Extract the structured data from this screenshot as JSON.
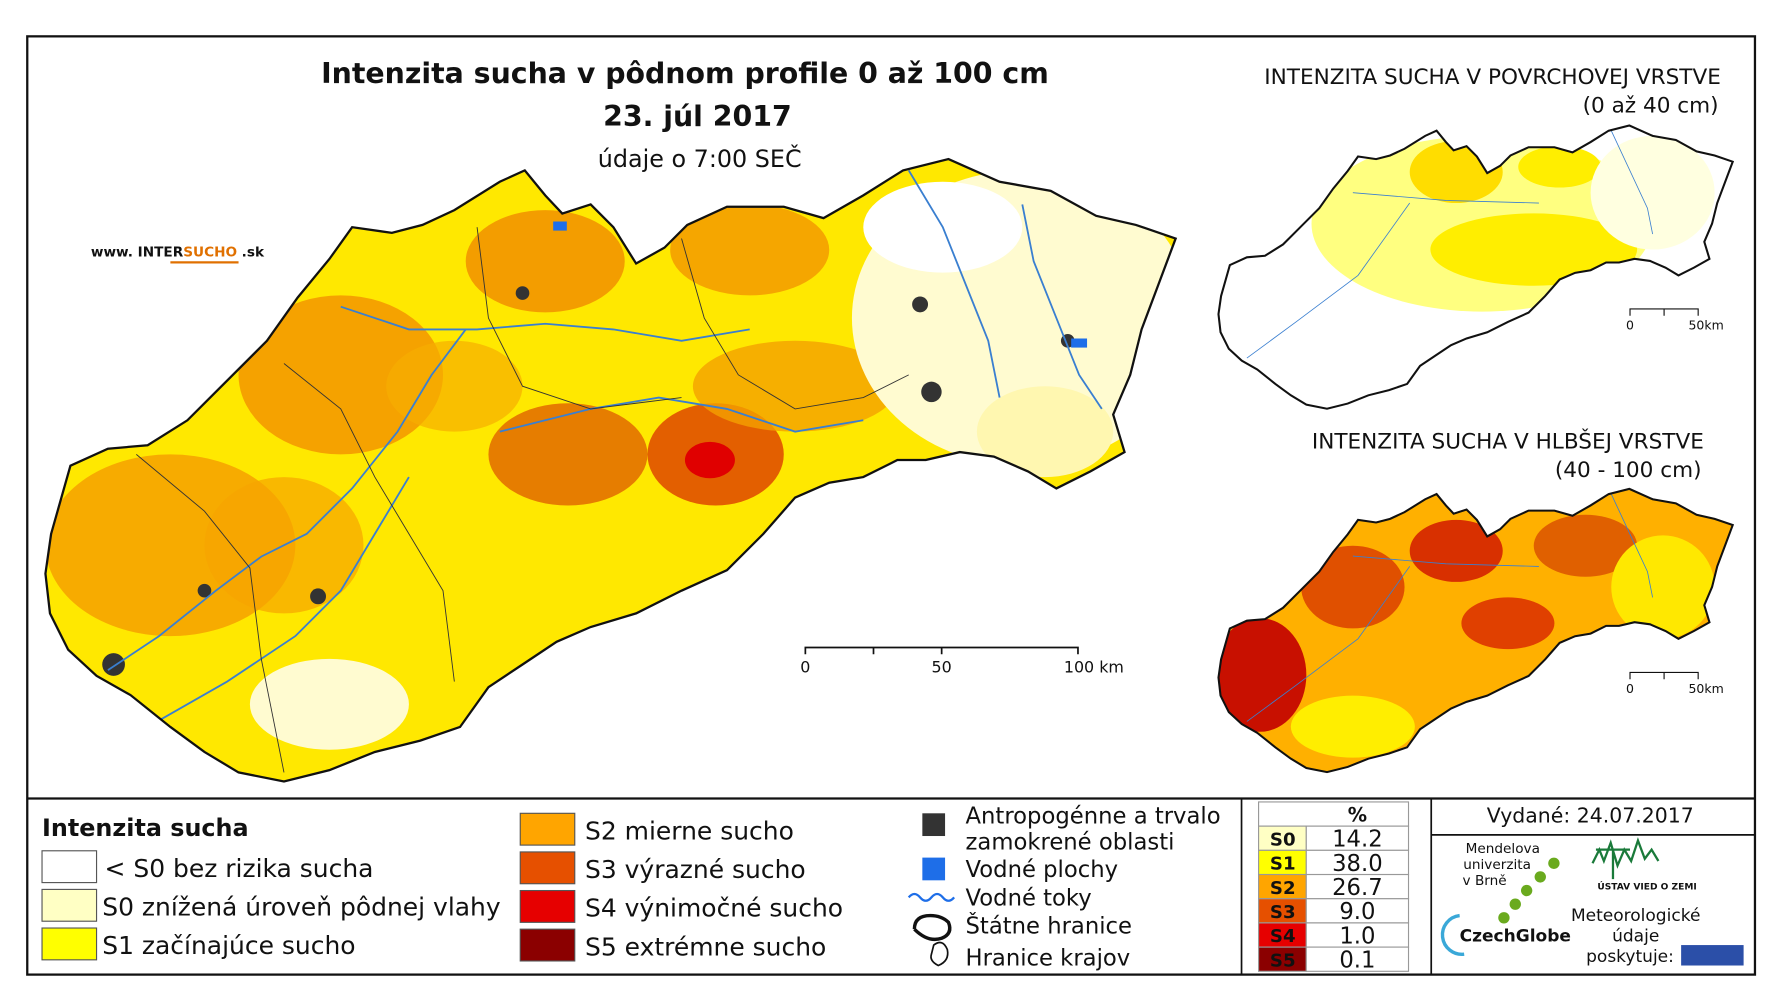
{
  "main_map": {
    "title": "Intenzita sucha v pôdnom profile 0 až 100 cm",
    "date": "23. júl 2017",
    "time_note": "údaje o 7:00 SEČ",
    "website": {
      "prefix": "www. INTER",
      "highlight": "SUCHO",
      "suffix": ".sk"
    },
    "scale": [
      "0",
      "50",
      "100 km"
    ]
  },
  "insets": [
    {
      "title": "INTENZITA SUCHA V POVRCHOVEJ VRSTVE",
      "subtitle": "(0 až 40 cm)",
      "scale": [
        "0",
        "50km"
      ]
    },
    {
      "title": "INTENZITA SUCHA V HLBŠEJ VRSTVE",
      "subtitle": "(40 - 100 cm)",
      "scale": [
        "0",
        "50km"
      ]
    }
  ],
  "legend": {
    "title": "Intenzita sucha",
    "classes": [
      {
        "label": "< S0 bez rizika sucha",
        "color": "#ffffff"
      },
      {
        "label": "S0 znížená úroveň pôdnej vlahy",
        "color": "#ffffc4"
      },
      {
        "label": "S1 začínajúce sucho",
        "color": "#ffff00"
      },
      {
        "label": "S2 mierne sucho",
        "color": "#ffa500"
      },
      {
        "label": "S3 výrazné sucho",
        "color": "#e65000"
      },
      {
        "label": "S4 výnimočné sucho",
        "color": "#e60000"
      },
      {
        "label": "S5 extrémne sucho",
        "color": "#8b0000"
      }
    ],
    "symbols": [
      {
        "lines": [
          "Antropogénne a trvalo",
          "zamokrené oblasti"
        ]
      },
      {
        "lines": [
          "Vodné plochy"
        ]
      },
      {
        "lines": [
          "Vodné toky"
        ]
      },
      {
        "lines": [
          "Štátne hranice"
        ]
      },
      {
        "lines": [
          "Hranice krajov"
        ]
      }
    ]
  },
  "share_table": {
    "header": "%",
    "rows": [
      {
        "label": "S0",
        "value": "14.2",
        "color": "#ffffc4"
      },
      {
        "label": "S1",
        "value": "38.0",
        "color": "#ffff00"
      },
      {
        "label": "S2",
        "value": "26.7",
        "color": "#ffa500"
      },
      {
        "label": "S3",
        "value": "9.0",
        "color": "#e65000"
      },
      {
        "label": "S4",
        "value": "1.0",
        "color": "#e60000"
      },
      {
        "label": "S5",
        "value": "0.1",
        "color": "#8b0000"
      }
    ]
  },
  "issued": "Vydané: 24.07.2017",
  "credits": {
    "mendel": [
      "Mendelova",
      "univerzita",
      "v Brně"
    ],
    "czechglobe": "CzechGlobe",
    "ustav": "ÚSTAV VIED O ZEMI",
    "meteo": [
      "Meteorologické",
      "údaje",
      "poskytuje:"
    ]
  }
}
